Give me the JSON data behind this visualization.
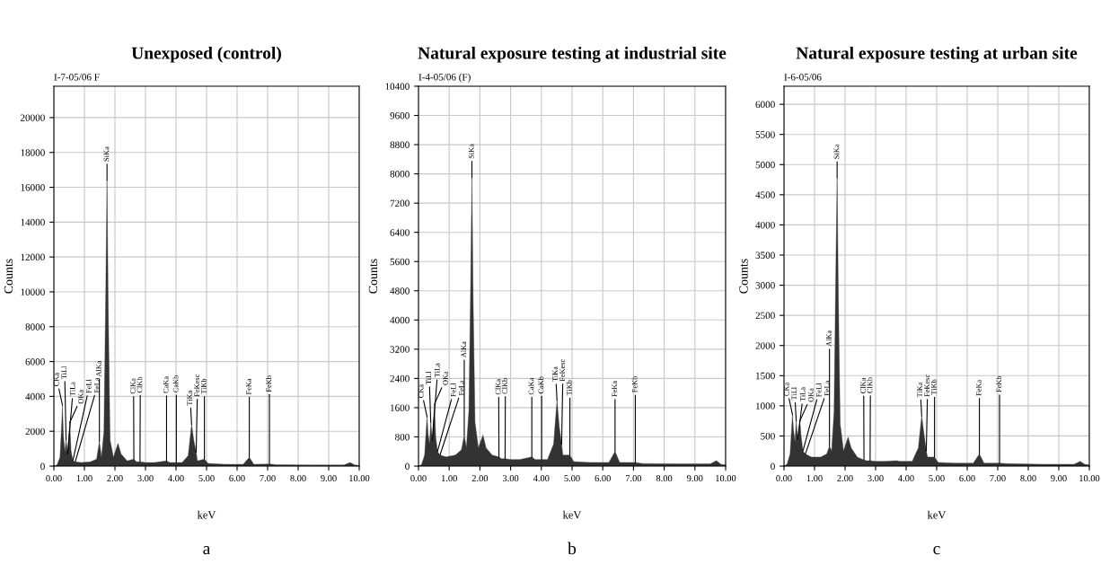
{
  "chart_data": [
    {
      "type": "area",
      "title": "Unexposed (control)",
      "xlabel": "keV",
      "ylabel": "Counts",
      "xlim": [
        0,
        10
      ],
      "ylim": [
        0,
        21800
      ],
      "xticks": [
        {
          "value": 0,
          "label": "0.00"
        },
        {
          "value": 1,
          "label": "1.00"
        },
        {
          "value": 2,
          "label": "2.00"
        },
        {
          "value": 3,
          "label": "3.00"
        },
        {
          "value": 4,
          "label": "4.00"
        },
        {
          "value": 5,
          "label": "5.00"
        },
        {
          "value": 6,
          "label": "6.00"
        },
        {
          "value": 7,
          "label": "7.00"
        },
        {
          "value": 8,
          "label": "8.00"
        },
        {
          "value": 9,
          "label": "9.00"
        },
        {
          "value": 10,
          "label": "10.00"
        }
      ],
      "yticks": [
        0,
        2000,
        4000,
        6000,
        8000,
        10000,
        12000,
        14000,
        16000,
        18000,
        20000
      ],
      "grid": true,
      "series": [
        {
          "color": "#333333",
          "x": [
            0,
            0.1,
            0.2,
            0.26,
            0.28,
            0.31,
            0.36,
            0.4,
            0.45,
            0.52,
            0.56,
            0.62,
            0.7,
            0.9,
            1.2,
            1.4,
            1.49,
            1.56,
            1.64,
            1.7,
            1.74,
            1.78,
            1.84,
            1.95,
            2.1,
            2.2,
            2.4,
            2.62,
            2.7,
            2.82,
            3.0,
            3.3,
            3.69,
            3.8,
            4.01,
            4.2,
            4.4,
            4.51,
            4.58,
            4.66,
            4.7,
            4.93,
            5.05,
            5.6,
            6.2,
            6.4,
            6.55,
            7.06,
            7.3,
            8.5,
            9.5,
            9.7,
            9.85,
            10
          ],
          "values": [
            0,
            50,
            500,
            2500,
            3500,
            1800,
            800,
            1500,
            700,
            2500,
            900,
            300,
            250,
            200,
            250,
            400,
            1400,
            500,
            2000,
            10000,
            16400,
            9000,
            1500,
            500,
            1300,
            700,
            300,
            400,
            250,
            250,
            200,
            200,
            300,
            200,
            200,
            200,
            600,
            2400,
            1500,
            800,
            300,
            400,
            150,
            100,
            100,
            500,
            100,
            120,
            80,
            60,
            60,
            200,
            60,
            40
          ]
        }
      ],
      "annotations": [
        "I-7-05/06 F",
        "a",
        {
          "text": "CKa",
          "x": 0.28,
          "y": 3500
        },
        {
          "text": "TiLl",
          "x": 0.4,
          "y": 1500
        },
        {
          "text": "TiLa",
          "x": 0.45,
          "y": 700
        },
        {
          "text": "OKa",
          "x": 0.52,
          "y": 2500
        },
        {
          "text": "FeLl",
          "x": 0.62,
          "y": 300
        },
        {
          "text": "FeLa",
          "x": 0.7,
          "y": 250
        },
        {
          "text": "AlKa",
          "x": 1.49,
          "y": 1400
        },
        {
          "text": "SiKa",
          "x": 1.74,
          "y": 16400
        },
        {
          "text": "ClKa",
          "x": 2.62,
          "y": 400
        },
        {
          "text": "ClKb",
          "x": 2.82,
          "y": 250
        },
        {
          "text": "CaKa",
          "x": 3.69,
          "y": 300
        },
        {
          "text": "CaKb",
          "x": 4.01,
          "y": 200
        },
        {
          "text": "TiKa",
          "x": 4.51,
          "y": 2400
        },
        {
          "text": "FeKesc",
          "x": 4.66,
          "y": 800
        },
        {
          "text": "TiKb",
          "x": 4.93,
          "y": 400
        },
        {
          "text": "FeKa",
          "x": 6.4,
          "y": 500
        },
        {
          "text": "FeKb",
          "x": 7.06,
          "y": 120
        }
      ]
    },
    {
      "type": "area",
      "title": "Natural exposure testing at industrial site",
      "xlabel": "keV",
      "ylabel": "Counts",
      "xlim": [
        0,
        10
      ],
      "ylim": [
        0,
        10400
      ],
      "xticks": [
        {
          "value": 0,
          "label": "0.00"
        },
        {
          "value": 1,
          "label": "1.00"
        },
        {
          "value": 2,
          "label": "2.00"
        },
        {
          "value": 3,
          "label": "3.00"
        },
        {
          "value": 4,
          "label": "4.00"
        },
        {
          "value": 5,
          "label": "5.00"
        },
        {
          "value": 6,
          "label": "6.00"
        },
        {
          "value": 7,
          "label": "7.00"
        },
        {
          "value": 8,
          "label": "8.00"
        },
        {
          "value": 9,
          "label": "9.00"
        },
        {
          "value": 10,
          "label": "10.00"
        }
      ],
      "yticks": [
        0,
        800,
        1600,
        2400,
        3200,
        4000,
        4800,
        5600,
        6400,
        7200,
        8000,
        8800,
        9600,
        10400
      ],
      "grid": true,
      "series": [
        {
          "color": "#333333",
          "x": [
            0,
            0.1,
            0.2,
            0.26,
            0.28,
            0.31,
            0.36,
            0.4,
            0.45,
            0.52,
            0.56,
            0.62,
            0.7,
            0.9,
            1.2,
            1.4,
            1.49,
            1.56,
            1.64,
            1.7,
            1.74,
            1.78,
            1.84,
            1.95,
            2.1,
            2.2,
            2.4,
            2.62,
            2.7,
            2.82,
            3.0,
            3.3,
            3.69,
            3.8,
            4.01,
            4.2,
            4.4,
            4.51,
            4.58,
            4.66,
            4.7,
            4.93,
            5.05,
            5.6,
            6.2,
            6.4,
            6.55,
            7.06,
            7.3,
            8.5,
            9.5,
            9.7,
            9.85,
            10
          ],
          "values": [
            0,
            40,
            300,
            1100,
            1350,
            900,
            600,
            1200,
            700,
            1700,
            800,
            400,
            300,
            250,
            300,
            450,
            850,
            500,
            1500,
            5000,
            7900,
            4500,
            1200,
            500,
            850,
            500,
            300,
            250,
            200,
            200,
            180,
            180,
            250,
            180,
            180,
            180,
            600,
            1800,
            1100,
            600,
            300,
            300,
            120,
            100,
            100,
            400,
            100,
            100,
            70,
            60,
            60,
            150,
            50,
            30
          ]
        }
      ],
      "annotations": [
        "I-4-05/06 (F)",
        "b",
        {
          "text": "CKa",
          "x": 0.28,
          "y": 1350
        },
        {
          "text": "FeLl",
          "x": 0.62,
          "y": 400
        },
        {
          "text": "FeLa",
          "x": 0.7,
          "y": 300
        },
        {
          "text": "OKa",
          "x": 0.52,
          "y": 1700
        },
        {
          "text": "TiLl",
          "x": 0.4,
          "y": 1200
        },
        {
          "text": "TiLa",
          "x": 0.45,
          "y": 700
        },
        {
          "text": "AlKa",
          "x": 1.49,
          "y": 850
        },
        {
          "text": "SiKa",
          "x": 1.74,
          "y": 7900
        },
        {
          "text": "ClKa",
          "x": 2.62,
          "y": 250
        },
        {
          "text": "ClKb",
          "x": 2.82,
          "y": 200
        },
        {
          "text": "CaKa",
          "x": 3.69,
          "y": 250
        },
        {
          "text": "CaKb",
          "x": 4.01,
          "y": 180
        },
        {
          "text": "TiKa",
          "x": 4.51,
          "y": 1800
        },
        {
          "text": "FeKesc",
          "x": 4.66,
          "y": 600
        },
        {
          "text": "TiKb",
          "x": 4.93,
          "y": 300
        },
        {
          "text": "FeKa",
          "x": 6.4,
          "y": 400
        },
        {
          "text": "FeKb",
          "x": 7.06,
          "y": 100
        }
      ]
    },
    {
      "type": "area",
      "title": "Natural exposure testing at urban site",
      "xlabel": "keV",
      "ylabel": "Counts",
      "xlim": [
        0,
        10
      ],
      "ylim": [
        0,
        6300
      ],
      "xticks": [
        {
          "value": 0,
          "label": "0.00"
        },
        {
          "value": 1,
          "label": "1.00"
        },
        {
          "value": 2,
          "label": "2.00"
        },
        {
          "value": 3,
          "label": "3.00"
        },
        {
          "value": 4,
          "label": "4.00"
        },
        {
          "value": 5,
          "label": "5.00"
        },
        {
          "value": 6,
          "label": "6.00"
        },
        {
          "value": 7,
          "label": "7.00"
        },
        {
          "value": 8,
          "label": "8.00"
        },
        {
          "value": 9,
          "label": "9.00"
        },
        {
          "value": 10,
          "label": "10.00"
        }
      ],
      "yticks": [
        0,
        500,
        1000,
        1500,
        2000,
        2500,
        3000,
        3500,
        4000,
        4500,
        5000,
        5500,
        6000
      ],
      "grid": true,
      "series": [
        {
          "color": "#333333",
          "x": [
            0,
            0.1,
            0.2,
            0.26,
            0.28,
            0.31,
            0.36,
            0.4,
            0.45,
            0.52,
            0.56,
            0.62,
            0.7,
            0.9,
            1.2,
            1.4,
            1.49,
            1.56,
            1.64,
            1.7,
            1.74,
            1.78,
            1.84,
            1.95,
            2.1,
            2.2,
            2.4,
            2.62,
            2.7,
            2.82,
            3.0,
            3.3,
            3.69,
            3.8,
            4.01,
            4.2,
            4.4,
            4.51,
            4.58,
            4.66,
            4.7,
            4.93,
            5.05,
            5.6,
            6.2,
            6.4,
            6.55,
            7.06,
            7.3,
            8.5,
            9.5,
            9.7,
            9.85,
            10
          ],
          "values": [
            0,
            30,
            200,
            700,
            850,
            600,
            400,
            750,
            450,
            750,
            500,
            250,
            200,
            150,
            150,
            200,
            330,
            250,
            900,
            3300,
            4780,
            2800,
            700,
            250,
            480,
            300,
            150,
            100,
            90,
            90,
            80,
            80,
            90,
            80,
            80,
            80,
            300,
            830,
            550,
            250,
            150,
            150,
            60,
            50,
            50,
            200,
            50,
            50,
            40,
            30,
            30,
            80,
            30,
            20
          ]
        }
      ],
      "annotations": [
        "I-6-05/06",
        "c",
        {
          "text": "CKa",
          "x": 0.28,
          "y": 850
        },
        {
          "text": "TiLl",
          "x": 0.4,
          "y": 750
        },
        {
          "text": "FeLl",
          "x": 0.62,
          "y": 250
        },
        {
          "text": "OKa",
          "x": 0.52,
          "y": 750
        },
        {
          "text": "FeLa",
          "x": 0.7,
          "y": 200
        },
        {
          "text": "TiLa",
          "x": 0.45,
          "y": 450
        },
        {
          "text": "AlKa",
          "x": 1.49,
          "y": 330
        },
        {
          "text": "SiKa",
          "x": 1.74,
          "y": 4780
        },
        {
          "text": "ClKa",
          "x": 2.62,
          "y": 100
        },
        {
          "text": "ClKb",
          "x": 2.82,
          "y": 90
        },
        {
          "text": "TiKa",
          "x": 4.51,
          "y": 830
        },
        {
          "text": "FeKesc",
          "x": 4.66,
          "y": 250
        },
        {
          "text": "TiKb",
          "x": 4.93,
          "y": 150
        },
        {
          "text": "FeKa",
          "x": 6.4,
          "y": 200
        },
        {
          "text": "FeKb",
          "x": 7.06,
          "y": 50
        }
      ]
    }
  ]
}
